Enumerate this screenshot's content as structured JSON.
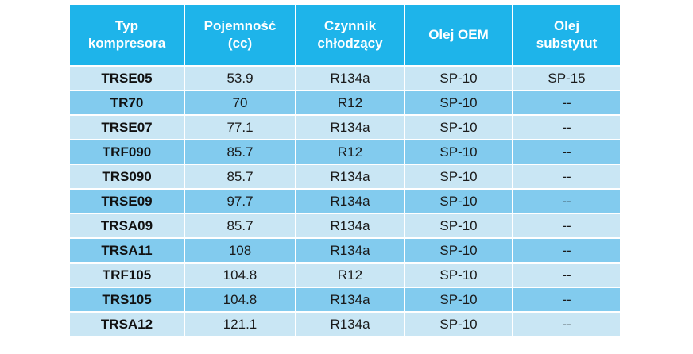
{
  "colors": {
    "header_bg": "#1eb4ea",
    "row_light": "#c9e6f4",
    "row_dark": "#82cbee",
    "header_text": "#ffffff"
  },
  "table": {
    "headers": [
      [
        "Typ",
        "kompresora"
      ],
      [
        "Pojemność",
        "(cc)"
      ],
      [
        "Czynnik",
        "chłodzący"
      ],
      [
        "Olej OEM"
      ],
      [
        "Olej",
        "substytut"
      ]
    ],
    "rows": [
      [
        "TRSE05",
        "53.9",
        "R134a",
        "SP-10",
        "SP-15"
      ],
      [
        "TR70",
        "70",
        "R12",
        "SP-10",
        "--"
      ],
      [
        "TRSE07",
        "77.1",
        "R134a",
        "SP-10",
        "--"
      ],
      [
        "TRF090",
        "85.7",
        "R12",
        "SP-10",
        "--"
      ],
      [
        "TRS090",
        "85.7",
        "R134a",
        "SP-10",
        "--"
      ],
      [
        "TRSE09",
        "97.7",
        "R134a",
        "SP-10",
        "--"
      ],
      [
        "TRSA09",
        "85.7",
        "R134a",
        "SP-10",
        "--"
      ],
      [
        "TRSA11",
        "108",
        "R134a",
        "SP-10",
        "--"
      ],
      [
        "TRF105",
        "104.8",
        "R12",
        "SP-10",
        "--"
      ],
      [
        "TRS105",
        "104.8",
        "R134a",
        "SP-10",
        "--"
      ],
      [
        "TRSA12",
        "121.1",
        "R134a",
        "SP-10",
        "--"
      ]
    ]
  }
}
